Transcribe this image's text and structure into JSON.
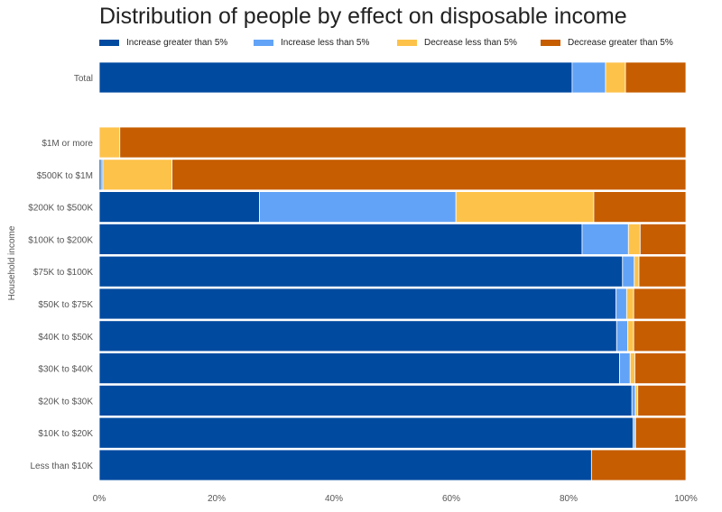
{
  "title": "Distribution of people by effect on disposable income",
  "colors": {
    "increase_gt_5": "#004aa0",
    "increase_lt_5": "#62a3f7",
    "decrease_lt_5": "#fdc24a",
    "decrease_gt_5": "#c65d00"
  },
  "legend": [
    {
      "label": "Increase greater than 5%",
      "color": "#004aa0"
    },
    {
      "label": "Increase less than 5%",
      "color": "#62a3f7"
    },
    {
      "label": "Decrease less than 5%",
      "color": "#fdc24a"
    },
    {
      "label": "Decrease greater than 5%",
      "color": "#c65d00"
    }
  ],
  "chart_data": {
    "type": "bar",
    "orientation": "horizontal",
    "stacked": true,
    "title": "Distribution of people by effect on disposable income",
    "ylabel": "Household income",
    "xlabel": "",
    "xlim": [
      0,
      100
    ],
    "x_ticks": [
      "0%",
      "20%",
      "40%",
      "60%",
      "80%",
      "100%"
    ],
    "legend_position": "top",
    "categories": [
      "Total",
      "$1M or more",
      "$500K to $1M",
      "$200K to $500K",
      "$100K to $200K",
      "$75K to $100K",
      "$50K to $75K",
      "$40K to $50K",
      "$30K to $40K",
      "$20K to $30K",
      "$10K to $20K",
      "Less than $10K"
    ],
    "series": [
      {
        "name": "Increase greater than 5%",
        "values": [
          80.6,
          0,
          0.3,
          27.3,
          82.3,
          89.2,
          88.1,
          88.2,
          88.7,
          90.8,
          91.0,
          83.9
        ]
      },
      {
        "name": "Increase less than 5%",
        "values": [
          5.7,
          0,
          0.3,
          33.5,
          7.9,
          2.0,
          1.8,
          1.9,
          1.8,
          0.6,
          0.3,
          0
        ]
      },
      {
        "name": "Decrease less than 5%",
        "values": [
          3.4,
          3.5,
          11.8,
          23.5,
          2.0,
          0.8,
          1.2,
          1.0,
          0.8,
          0.4,
          0.1,
          0
        ]
      },
      {
        "name": "Decrease greater than 5%",
        "values": [
          10.3,
          96.5,
          87.6,
          15.7,
          7.8,
          8.0,
          8.9,
          8.9,
          8.7,
          8.2,
          8.6,
          16.1
        ]
      }
    ]
  }
}
